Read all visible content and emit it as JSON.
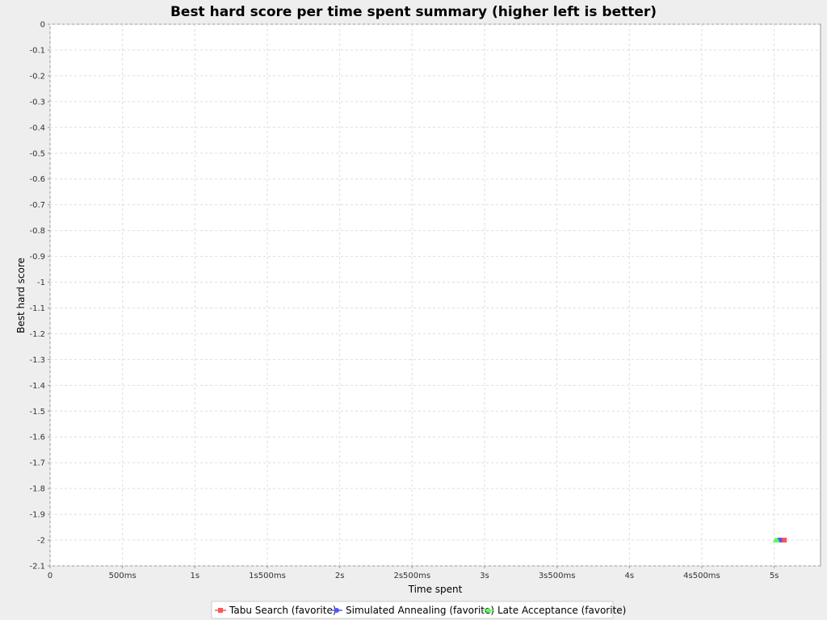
{
  "chart_data": {
    "type": "line",
    "title": "Best hard score per time spent summary (higher left is better)",
    "xlabel": "Time spent",
    "ylabel": "Best hard score",
    "xlim": [
      0,
      5.32
    ],
    "ylim": [
      -2.1,
      0
    ],
    "x_ticks": [
      {
        "value": 0,
        "label": "0"
      },
      {
        "value": 0.5,
        "label": "500ms"
      },
      {
        "value": 1,
        "label": "1s"
      },
      {
        "value": 1.5,
        "label": "1s500ms"
      },
      {
        "value": 2,
        "label": "2s"
      },
      {
        "value": 2.5,
        "label": "2s500ms"
      },
      {
        "value": 3,
        "label": "3s"
      },
      {
        "value": 3.5,
        "label": "3s500ms"
      },
      {
        "value": 4,
        "label": "4s"
      },
      {
        "value": 4.5,
        "label": "4s500ms"
      },
      {
        "value": 5,
        "label": "5s"
      }
    ],
    "y_ticks": [
      {
        "value": 0,
        "label": "0"
      },
      {
        "value": -0.1,
        "label": "-0.1"
      },
      {
        "value": -0.2,
        "label": "-0.2"
      },
      {
        "value": -0.3,
        "label": "-0.3"
      },
      {
        "value": -0.4,
        "label": "-0.4"
      },
      {
        "value": -0.5,
        "label": "-0.5"
      },
      {
        "value": -0.6,
        "label": "-0.6"
      },
      {
        "value": -0.7,
        "label": "-0.7"
      },
      {
        "value": -0.8,
        "label": "-0.8"
      },
      {
        "value": -0.9,
        "label": "-0.9"
      },
      {
        "value": -1,
        "label": "-1"
      },
      {
        "value": -1.1,
        "label": "-1.1"
      },
      {
        "value": -1.2,
        "label": "-1.2"
      },
      {
        "value": -1.3,
        "label": "-1.3"
      },
      {
        "value": -1.4,
        "label": "-1.4"
      },
      {
        "value": -1.5,
        "label": "-1.5"
      },
      {
        "value": -1.6,
        "label": "-1.6"
      },
      {
        "value": -1.7,
        "label": "-1.7"
      },
      {
        "value": -1.8,
        "label": "-1.8"
      },
      {
        "value": -1.9,
        "label": "-1.9"
      },
      {
        "value": -2,
        "label": "-2"
      },
      {
        "value": -2.1,
        "label": "-2.1"
      }
    ],
    "grid": true,
    "legend_position": "bottom",
    "series": [
      {
        "name": "Tabu Search (favorite)",
        "color": "#ff5555",
        "marker": "square",
        "points": [
          {
            "x": 5.05,
            "y": -2
          },
          {
            "x": 5.07,
            "y": -2
          }
        ]
      },
      {
        "name": "Simulated Annealing (favorite)",
        "color": "#5555ff",
        "marker": "circle",
        "points": [
          {
            "x": 5.03,
            "y": -2
          },
          {
            "x": 5.04,
            "y": -2
          }
        ]
      },
      {
        "name": "Late Acceptance (favorite)",
        "color": "#55ff55",
        "marker": "triangle",
        "points": [
          {
            "x": 5.01,
            "y": -2
          },
          {
            "x": 5.02,
            "y": -2
          }
        ]
      }
    ]
  }
}
